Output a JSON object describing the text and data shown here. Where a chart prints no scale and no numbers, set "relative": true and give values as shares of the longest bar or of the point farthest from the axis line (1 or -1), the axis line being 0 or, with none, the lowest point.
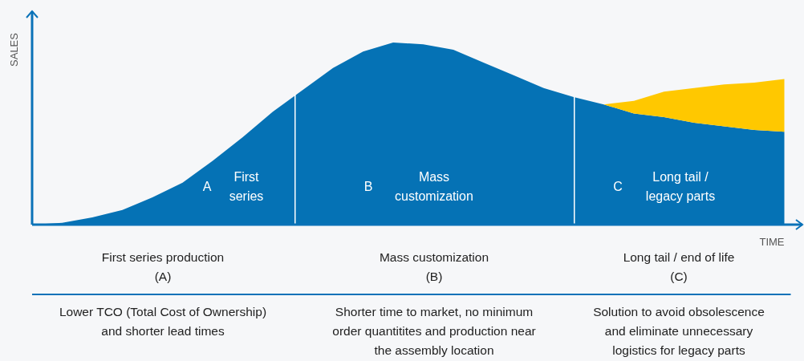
{
  "chart_data": {
    "type": "area",
    "relative": true,
    "stacked": true,
    "xlabel": "TIME",
    "ylabel": "SALES",
    "categories": [
      null,
      null,
      null,
      null,
      null,
      null,
      null,
      null,
      null,
      null,
      null,
      null,
      null,
      null,
      null,
      null,
      null,
      null,
      null,
      null,
      null,
      null,
      null,
      null,
      null,
      null
    ],
    "series": [
      {
        "color": "#0572b5",
        "values": [
          0,
          0.01,
          0.04,
          0.08,
          0.15,
          0.23,
          0.35,
          0.48,
          0.62,
          0.74,
          0.86,
          0.95,
          1.0,
          0.99,
          0.96,
          0.89,
          0.82,
          0.75,
          0.7,
          0.66,
          0.61,
          0.59,
          0.56,
          0.54,
          0.52,
          0.51
        ]
      },
      {
        "color": "#ffc800",
        "values": [
          null,
          null,
          null,
          null,
          null,
          null,
          null,
          null,
          null,
          null,
          null,
          null,
          null,
          null,
          null,
          null,
          null,
          null,
          null,
          0,
          0.07,
          0.14,
          0.19,
          0.23,
          0.26,
          0.29
        ]
      }
    ],
    "annotations": [
      "A",
      "First\nseries",
      "B",
      "Mass\ncustomization",
      "C",
      "Long tail /\nlegacy parts",
      "First series production\n(A)",
      "Mass customization\n(B)",
      "Long tail / end of life\n(C)",
      "Lower TCO (Total Cost of Ownership)\nand shorter lead times",
      "Shorter time to market, no minimum\norder quantitites and production near\nthe assembly location",
      "Solution to avoid obsolescence\nand eliminate unnecessary\nlogistics for legacy parts"
    ]
  }
}
